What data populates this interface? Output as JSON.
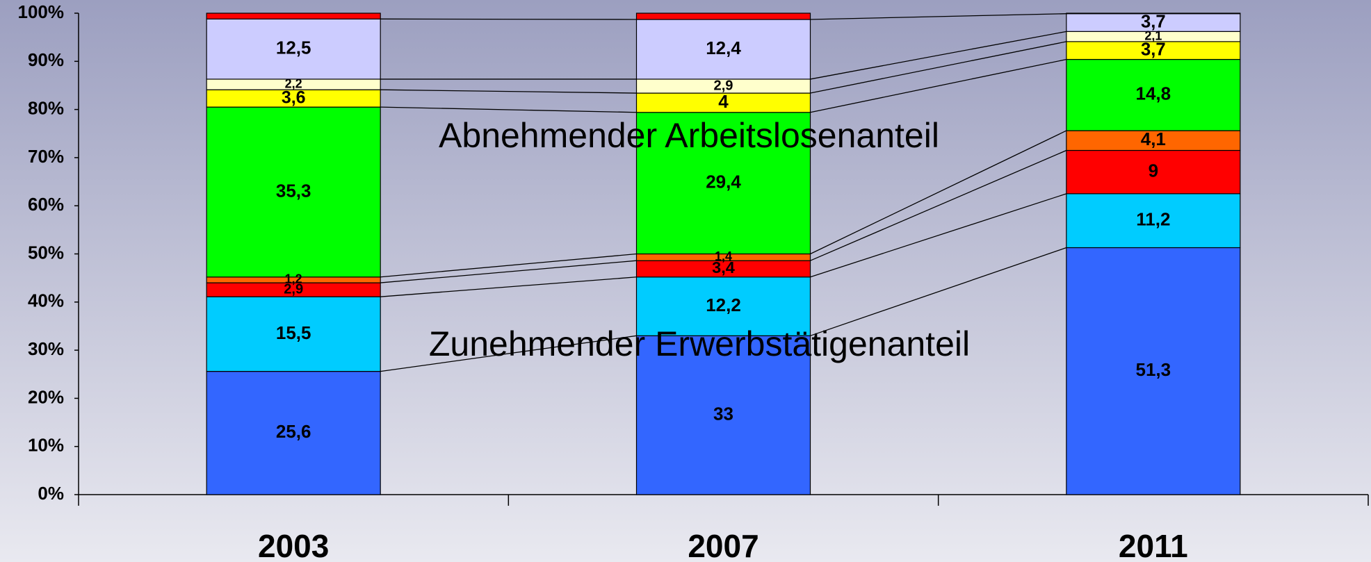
{
  "chart_data": {
    "type": "stacked-bar-100",
    "categories": [
      "2003",
      "2007",
      "2011"
    ],
    "ylim": [
      0,
      100
    ],
    "yticks": [
      {
        "value": 0,
        "label": "0%"
      },
      {
        "value": 10,
        "label": "10%"
      },
      {
        "value": 20,
        "label": "20%"
      },
      {
        "value": 30,
        "label": "30%"
      },
      {
        "value": 40,
        "label": "40%"
      },
      {
        "value": 50,
        "label": "50%"
      },
      {
        "value": 60,
        "label": "60%"
      },
      {
        "value": 70,
        "label": "70%"
      },
      {
        "value": 80,
        "label": "80%"
      },
      {
        "value": 90,
        "label": "90%"
      },
      {
        "value": 100,
        "label": "100%"
      }
    ],
    "series": [
      {
        "color": "#3366ff",
        "values": [
          25.6,
          33,
          51.3
        ],
        "value_labels": [
          "25,6",
          "33",
          "51,3"
        ]
      },
      {
        "color": "#00ccff",
        "values": [
          15.5,
          12.2,
          11.2
        ],
        "value_labels": [
          "15,5",
          "12,2",
          "11,2"
        ]
      },
      {
        "color": "#ff0000",
        "values": [
          2.9,
          3.4,
          9
        ],
        "value_labels": [
          "2,9",
          "3,4",
          "9"
        ]
      },
      {
        "color": "#ff6600",
        "values": [
          1.2,
          1.4,
          4.1
        ],
        "value_labels": [
          "1,2",
          "1,4",
          "4,1"
        ]
      },
      {
        "color": "#00ff00",
        "values": [
          35.3,
          29.4,
          14.8
        ],
        "value_labels": [
          "35,3",
          "29,4",
          "14,8"
        ]
      },
      {
        "color": "#ffff00",
        "values": [
          3.6,
          4,
          3.7
        ],
        "value_labels": [
          "3,6",
          "4",
          "3,7"
        ]
      },
      {
        "color": "#ffffcc",
        "values": [
          2.2,
          2.9,
          2.1
        ],
        "value_labels": [
          "2,2",
          "2,9",
          "2,1"
        ]
      },
      {
        "color": "#ccccff",
        "values": [
          12.5,
          12.4,
          3.7
        ],
        "value_labels": [
          "12,5",
          "12,4",
          "3,7"
        ]
      },
      {
        "color": "#ff0000",
        "values": [
          1.2,
          1.3,
          0.1
        ]
      }
    ],
    "annotations": [
      "Abnehmender Arbeitslosenanteil",
      "Zunehmender Erwerbstätigenanteil"
    ]
  }
}
